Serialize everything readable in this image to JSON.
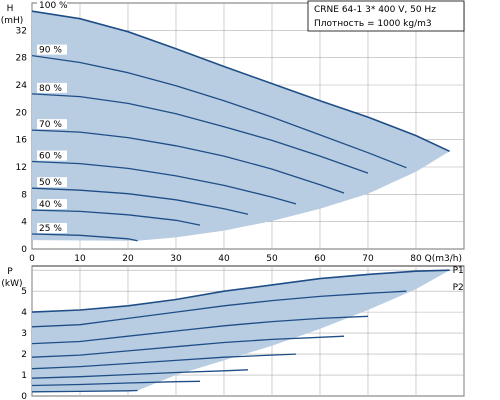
{
  "chart_data": [
    {
      "type": "line",
      "title": "",
      "xlabel": "Q(m3/h)",
      "ylabel": "H",
      "ylabel_unit": "(mH)",
      "xlim": [
        0,
        90
      ],
      "ylim": [
        0,
        36
      ],
      "xticks": [
        "0",
        "10",
        "20",
        "30",
        "40",
        "50",
        "60",
        "70",
        "80"
      ],
      "yticks": [
        "0",
        "4",
        "8",
        "12",
        "16",
        "20",
        "24",
        "28",
        "32"
      ],
      "grid": true,
      "info_box": {
        "line1": "CRNE 64-1    3* 400 V, 50 Hz",
        "line2": "Плотность = 1000 kg/m3"
      },
      "series": [
        {
          "name": "100 %",
          "x": [
            0,
            10,
            20,
            30,
            40,
            50,
            60,
            70,
            80,
            87
          ],
          "y": [
            34.8,
            33.7,
            31.8,
            29.3,
            26.7,
            24.2,
            21.7,
            19.3,
            16.6,
            14.3
          ]
        },
        {
          "name": "90 %",
          "x": [
            0,
            10,
            20,
            30,
            40,
            50,
            60,
            70,
            78
          ],
          "y": [
            28.3,
            27.3,
            25.8,
            23.9,
            21.7,
            19.3,
            16.7,
            14.1,
            11.9
          ]
        },
        {
          "name": "80 %",
          "x": [
            0,
            10,
            20,
            30,
            40,
            50,
            60,
            70
          ],
          "y": [
            22.7,
            22.3,
            21.3,
            19.8,
            17.9,
            15.9,
            13.6,
            11.1
          ]
        },
        {
          "name": "70 %",
          "x": [
            0,
            10,
            20,
            30,
            40,
            50,
            60,
            65
          ],
          "y": [
            17.4,
            17.1,
            16.3,
            15.1,
            13.6,
            11.7,
            9.4,
            8.2
          ]
        },
        {
          "name": "60 %",
          "x": [
            0,
            10,
            20,
            30,
            40,
            50,
            55
          ],
          "y": [
            12.8,
            12.5,
            11.8,
            10.7,
            9.3,
            7.6,
            6.6
          ]
        },
        {
          "name": "50 %",
          "x": [
            0,
            10,
            20,
            30,
            40,
            45
          ],
          "y": [
            8.9,
            8.6,
            8.1,
            7.2,
            5.9,
            5.1
          ]
        },
        {
          "name": "40 %",
          "x": [
            0,
            10,
            20,
            30,
            35
          ],
          "y": [
            5.7,
            5.5,
            5.0,
            4.2,
            3.5
          ]
        },
        {
          "name": "25 %",
          "x": [
            0,
            10,
            20,
            22
          ],
          "y": [
            2.2,
            2.0,
            1.5,
            1.2
          ]
        }
      ],
      "envelope": {
        "x": [
          0,
          10,
          20,
          30,
          40,
          50,
          60,
          70,
          80,
          87,
          80,
          70,
          60,
          50,
          40,
          30,
          22,
          0
        ],
        "y": [
          34.8,
          33.7,
          31.8,
          29.3,
          26.7,
          24.2,
          21.7,
          19.3,
          16.6,
          14.3,
          11.3,
          8.1,
          5.9,
          4.1,
          2.7,
          1.7,
          1.2,
          1.3
        ]
      }
    },
    {
      "type": "line",
      "title": "",
      "xlabel": "",
      "ylabel": "P",
      "ylabel_unit": "(kW)",
      "xlim": [
        0,
        90
      ],
      "ylim": [
        0,
        6.2
      ],
      "yticks": [
        "0",
        "1",
        "2",
        "3",
        "4",
        "5"
      ],
      "grid": true,
      "series": [
        {
          "name": "P1",
          "x": [
            0,
            10,
            20,
            30,
            40,
            50,
            60,
            70,
            80,
            87
          ],
          "y": [
            4.0,
            4.1,
            4.3,
            4.6,
            5.0,
            5.3,
            5.6,
            5.8,
            5.95,
            6.0
          ]
        },
        {
          "name": "",
          "x": [
            0,
            10,
            20,
            30,
            40,
            50,
            60,
            70,
            78
          ],
          "y": [
            3.3,
            3.4,
            3.7,
            4.0,
            4.3,
            4.55,
            4.75,
            4.9,
            5.0
          ]
        },
        {
          "name": "",
          "x": [
            0,
            10,
            20,
            30,
            40,
            50,
            60,
            70
          ],
          "y": [
            2.5,
            2.6,
            2.85,
            3.1,
            3.35,
            3.55,
            3.7,
            3.8
          ]
        },
        {
          "name": "",
          "x": [
            0,
            10,
            20,
            30,
            40,
            50,
            60,
            65
          ],
          "y": [
            1.85,
            1.95,
            2.15,
            2.35,
            2.55,
            2.7,
            2.8,
            2.85
          ]
        },
        {
          "name": "",
          "x": [
            0,
            10,
            20,
            30,
            40,
            50,
            55
          ],
          "y": [
            1.3,
            1.4,
            1.55,
            1.7,
            1.85,
            1.95,
            2.0
          ]
        },
        {
          "name": "",
          "x": [
            0,
            10,
            20,
            30,
            40,
            45
          ],
          "y": [
            0.85,
            0.92,
            1.02,
            1.12,
            1.2,
            1.25
          ]
        },
        {
          "name": "",
          "x": [
            0,
            10,
            20,
            30,
            35
          ],
          "y": [
            0.5,
            0.55,
            0.62,
            0.68,
            0.7
          ]
        },
        {
          "name": "",
          "x": [
            0,
            10,
            20,
            22
          ],
          "y": [
            0.2,
            0.22,
            0.25,
            0.26
          ]
        },
        {
          "name": "P2",
          "x": [
            87
          ],
          "y": [
            5.2
          ]
        }
      ],
      "envelope": {
        "x": [
          0,
          10,
          20,
          30,
          40,
          50,
          60,
          70,
          80,
          87,
          80,
          70,
          60,
          50,
          40,
          30,
          22,
          0
        ],
        "y": [
          4.0,
          4.1,
          4.3,
          4.6,
          5.0,
          5.3,
          5.6,
          5.8,
          5.95,
          6.0,
          5.1,
          4.1,
          3.2,
          2.4,
          1.7,
          1.0,
          0.26,
          0.2
        ]
      }
    }
  ]
}
